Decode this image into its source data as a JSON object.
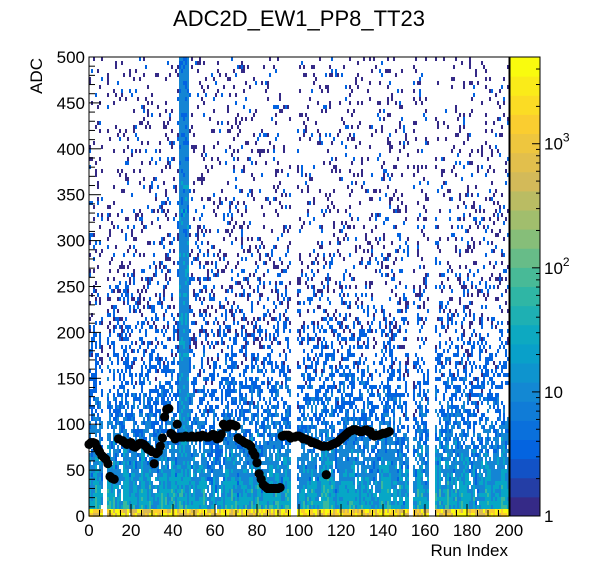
{
  "chart_data": {
    "type": "heatmap",
    "title": "ADC2D_EW1_PP8_TT23",
    "xlabel": "Run Index",
    "ylabel": "ADC",
    "xlim": [
      0,
      200
    ],
    "ylim": [
      0,
      500
    ],
    "x_ticks": [
      0,
      20,
      40,
      60,
      80,
      100,
      120,
      140,
      160,
      180,
      200
    ],
    "y_ticks": [
      0,
      50,
      100,
      150,
      200,
      250,
      300,
      350,
      400,
      450,
      500
    ],
    "colorbar": {
      "scale": "log",
      "range": [
        1,
        5000
      ],
      "ticks": [
        {
          "value": 1,
          "label": "1"
        },
        {
          "value": 10,
          "label": "10"
        },
        {
          "value": 100,
          "label": "10",
          "exp": "2"
        },
        {
          "value": 1000,
          "label": "10",
          "exp": "3"
        }
      ],
      "palette": [
        "#352a87",
        "#0363e1",
        "#1485d4",
        "#06a7c6",
        "#38b99e",
        "#92bf73",
        "#d9ba56",
        "#fcce2e",
        "#f9fb0e"
      ]
    },
    "grid": false,
    "empty_columns": [
      7,
      97,
      153,
      163
    ],
    "hot_column": {
      "x": 45,
      "width": 2
    },
    "mean_series": {
      "name": "",
      "marker": "circle",
      "color": "#000000",
      "points": [
        [
          0,
          78
        ],
        [
          1,
          80
        ],
        [
          2,
          80
        ],
        [
          3,
          79
        ],
        [
          4,
          74
        ],
        [
          5,
          70
        ],
        [
          6,
          66
        ],
        [
          7,
          64
        ],
        [
          8,
          62
        ],
        [
          9,
          57
        ],
        [
          10,
          43
        ],
        [
          11,
          41
        ],
        [
          12,
          40
        ],
        [
          14,
          84
        ],
        [
          16,
          82
        ],
        [
          17,
          80
        ],
        [
          18,
          78
        ],
        [
          20,
          80
        ],
        [
          21,
          76
        ],
        [
          22,
          75
        ],
        [
          23,
          77
        ],
        [
          24,
          79
        ],
        [
          25,
          79
        ],
        [
          26,
          78
        ],
        [
          27,
          76
        ],
        [
          28,
          73
        ],
        [
          29,
          72
        ],
        [
          30,
          70
        ],
        [
          31,
          57
        ],
        [
          32,
          68
        ],
        [
          33,
          70
        ],
        [
          34,
          76
        ],
        [
          35,
          85
        ],
        [
          36,
          108
        ],
        [
          37,
          116
        ],
        [
          38,
          117
        ],
        [
          39,
          90
        ],
        [
          40,
          88
        ],
        [
          41,
          84
        ],
        [
          42,
          100
        ],
        [
          43,
          86
        ],
        [
          44,
          86
        ],
        [
          45,
          86
        ],
        [
          46,
          87
        ],
        [
          47,
          86
        ],
        [
          48,
          86
        ],
        [
          49,
          87
        ],
        [
          50,
          86
        ],
        [
          51,
          86
        ],
        [
          52,
          87
        ],
        [
          53,
          86
        ],
        [
          54,
          88
        ],
        [
          55,
          87
        ],
        [
          56,
          86
        ],
        [
          57,
          86
        ],
        [
          58,
          87
        ],
        [
          59,
          89
        ],
        [
          60,
          88
        ],
        [
          61,
          84
        ],
        [
          62,
          85
        ],
        [
          63,
          89
        ],
        [
          64,
          100
        ],
        [
          65,
          97
        ],
        [
          66,
          97
        ],
        [
          67,
          100
        ],
        [
          68,
          100
        ],
        [
          69,
          99
        ],
        [
          70,
          98
        ],
        [
          71,
          85
        ],
        [
          72,
          83
        ],
        [
          73,
          82
        ],
        [
          74,
          80
        ],
        [
          75,
          79
        ],
        [
          76,
          78
        ],
        [
          77,
          76
        ],
        [
          78,
          70
        ],
        [
          79,
          66
        ],
        [
          80,
          58
        ],
        [
          81,
          46
        ],
        [
          82,
          40
        ],
        [
          83,
          34
        ],
        [
          84,
          32
        ],
        [
          85,
          30
        ],
        [
          86,
          30
        ],
        [
          87,
          30
        ],
        [
          88,
          30
        ],
        [
          89,
          30
        ],
        [
          90,
          30
        ],
        [
          91,
          31
        ],
        [
          92,
          87
        ],
        [
          93,
          88
        ],
        [
          94,
          88
        ],
        [
          95,
          88
        ],
        [
          96,
          85
        ],
        [
          97,
          86
        ],
        [
          98,
          86
        ],
        [
          99,
          87
        ],
        [
          100,
          87
        ],
        [
          101,
          86
        ],
        [
          102,
          84
        ],
        [
          103,
          84
        ],
        [
          104,
          83
        ],
        [
          105,
          82
        ],
        [
          106,
          80
        ],
        [
          107,
          80
        ],
        [
          108,
          79
        ],
        [
          109,
          78
        ],
        [
          110,
          77
        ],
        [
          111,
          76
        ],
        [
          112,
          76
        ],
        [
          113,
          45
        ],
        [
          114,
          76
        ],
        [
          115,
          77
        ],
        [
          116,
          78
        ],
        [
          117,
          79
        ],
        [
          118,
          80
        ],
        [
          119,
          82
        ],
        [
          120,
          84
        ],
        [
          121,
          86
        ],
        [
          122,
          88
        ],
        [
          123,
          90
        ],
        [
          124,
          92
        ],
        [
          125,
          93
        ],
        [
          126,
          94
        ],
        [
          127,
          94
        ],
        [
          128,
          93
        ],
        [
          129,
          92
        ],
        [
          130,
          92
        ],
        [
          131,
          93
        ],
        [
          132,
          94
        ],
        [
          133,
          92
        ],
        [
          134,
          92
        ],
        [
          135,
          88
        ],
        [
          136,
          87
        ],
        [
          137,
          88
        ],
        [
          138,
          88
        ],
        [
          139,
          89
        ],
        [
          140,
          90
        ],
        [
          141,
          90
        ],
        [
          142,
          91
        ],
        [
          143,
          92
        ]
      ]
    }
  }
}
